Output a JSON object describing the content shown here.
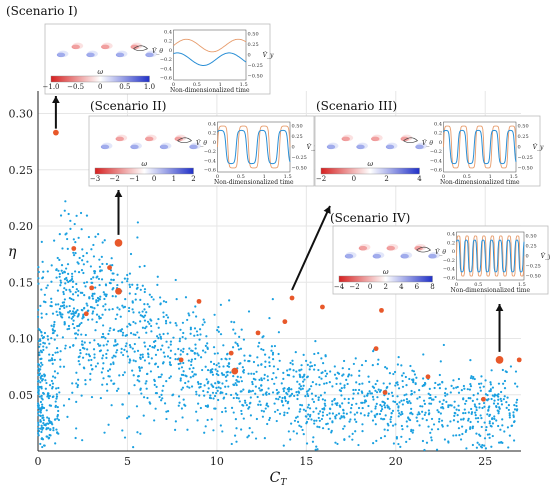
{
  "chart_data": {
    "type": "scatter",
    "xlabel": "C_T",
    "ylabel": "η",
    "xlim": [
      0,
      27
    ],
    "ylim": [
      0,
      0.32
    ],
    "x_ticks": [
      0,
      5,
      10,
      15,
      20,
      25
    ],
    "y_ticks": [
      0.05,
      0.1,
      0.15,
      0.2,
      0.25,
      0.3
    ],
    "grid": true,
    "series": [
      {
        "color": "#1aa0e0",
        "marker": "small dot",
        "description_count": 2000
      },
      {
        "color": "#e8582a",
        "marker": "dot",
        "points": [
          {
            "x": 1.0,
            "y": 0.283,
            "size": 1.2
          },
          {
            "x": 4.5,
            "y": 0.185,
            "size": 1.6
          },
          {
            "x": 4.5,
            "y": 0.142,
            "size": 1.4
          },
          {
            "x": 14.2,
            "y": 0.136,
            "size": 1.0
          },
          {
            "x": 25.8,
            "y": 0.081,
            "size": 1.6
          },
          {
            "x": 11.0,
            "y": 0.071,
            "size": 1.4
          },
          {
            "x": 2.0,
            "y": 0.18,
            "size": 1.0
          },
          {
            "x": 3.0,
            "y": 0.145,
            "size": 1.0
          },
          {
            "x": 2.7,
            "y": 0.122,
            "size": 1.0
          },
          {
            "x": 4.0,
            "y": 0.163,
            "size": 1.0
          },
          {
            "x": 9.0,
            "y": 0.133,
            "size": 1.0
          },
          {
            "x": 12.3,
            "y": 0.105,
            "size": 1.0
          },
          {
            "x": 13.8,
            "y": 0.115,
            "size": 1.0
          },
          {
            "x": 15.9,
            "y": 0.128,
            "size": 1.0
          },
          {
            "x": 19.2,
            "y": 0.125,
            "size": 1.0
          },
          {
            "x": 18.9,
            "y": 0.091,
            "size": 1.0
          },
          {
            "x": 10.8,
            "y": 0.087,
            "size": 1.0
          },
          {
            "x": 8.0,
            "y": 0.081,
            "size": 1.0
          },
          {
            "x": 19.4,
            "y": 0.052,
            "size": 1.0
          },
          {
            "x": 21.8,
            "y": 0.066,
            "size": 1.0
          },
          {
            "x": 24.9,
            "y": 0.046,
            "size": 1.0
          },
          {
            "x": 26.9,
            "y": 0.081,
            "size": 1.0
          }
        ]
      }
    ],
    "annotations": [
      {
        "label": "(Scenario I)",
        "x": 1.0,
        "y": 0.283
      },
      {
        "label": "(Scenario II)",
        "x": 4.5,
        "y": 0.185
      },
      {
        "label": "(Scenario III)",
        "x": 14.2,
        "y": 0.136
      },
      {
        "label": "(Scenario IV)",
        "x": 25.8,
        "y": 0.081
      }
    ],
    "insets": [
      {
        "scenario": "(Scenario I)",
        "colorbar_label": "ω",
        "colorbar_ticks": [
          "−1.0",
          "−0.5",
          "0",
          "0.5",
          "1.0"
        ],
        "plot_xlabel": "Non-dimensionalized time",
        "left_axis_label": "V̂_θ",
        "right_axis_label": "V̂_y",
        "left_ticks": [
          "0.4",
          "0.2",
          "0",
          "−0.2",
          "−0.4",
          "−0.6"
        ],
        "right_ticks": [
          "0.50",
          "0.25",
          "0",
          "−0.25",
          "−0.50"
        ],
        "x_ticks": [
          "0",
          "0.5",
          "1",
          "1.5"
        ],
        "curves": "smooth sinusoids, low amplitude"
      },
      {
        "scenario": "(Scenario II)",
        "colorbar_label": "ω",
        "colorbar_ticks": [
          "−3",
          "−2",
          "−1",
          "0",
          "1",
          "2"
        ],
        "plot_xlabel": "Non-dimensionalized time",
        "left_axis_label": "V̂_θ",
        "right_axis_label": "V̂_y",
        "left_ticks": [
          "0.4",
          "0.2",
          "0",
          "−0.2",
          "−0.4",
          "−0.6"
        ],
        "right_ticks": [
          "0.50",
          "0.25",
          "0",
          "−0.25",
          "−0.50"
        ],
        "x_ticks": [
          "0",
          "0.5",
          "1",
          "1.5"
        ],
        "curves": "square-like waves, 4 cycles"
      },
      {
        "scenario": "(Scenario III)",
        "colorbar_label": "ω",
        "colorbar_ticks": [
          "−2",
          "0",
          "2",
          "4"
        ],
        "plot_xlabel": "Non-dimensionalized time",
        "left_axis_label": "V̂_θ",
        "right_axis_label": "V̂_y",
        "left_ticks": [
          "0.4",
          "0.2",
          "0",
          "−0.2",
          "−0.4",
          "−0.6"
        ],
        "right_ticks": [
          "0.50",
          "0.25",
          "0",
          "−0.25",
          "−0.50"
        ],
        "x_ticks": [
          "0",
          "0.5",
          "1",
          "1.5"
        ],
        "curves": "square-like waves, 5 cycles"
      },
      {
        "scenario": "(Scenario IV)",
        "colorbar_label": "ω",
        "colorbar_ticks": [
          "−4",
          "−2",
          "0",
          "2",
          "4",
          "6",
          "8"
        ],
        "plot_xlabel": "Non-dimensionalized time",
        "left_axis_label": "V̂_θ",
        "right_axis_label": "V̂_y",
        "left_ticks": [
          "0.4",
          "0.2",
          "0",
          "−0.2",
          "−0.4",
          "−0.6"
        ],
        "right_ticks": [
          "0.50",
          "0.25",
          "0",
          "−0.25",
          "−0.50"
        ],
        "x_ticks": [
          "0",
          "0.5",
          "1",
          "1.5"
        ],
        "curves": "square-like waves, 8 cycles"
      }
    ]
  },
  "colors": {
    "blue": "#1aa0e0",
    "orange": "#e8582a",
    "grid": "#e6e6e6",
    "inset_blue": "#2a8fd6",
    "inset_orange": "#e79c6c"
  }
}
